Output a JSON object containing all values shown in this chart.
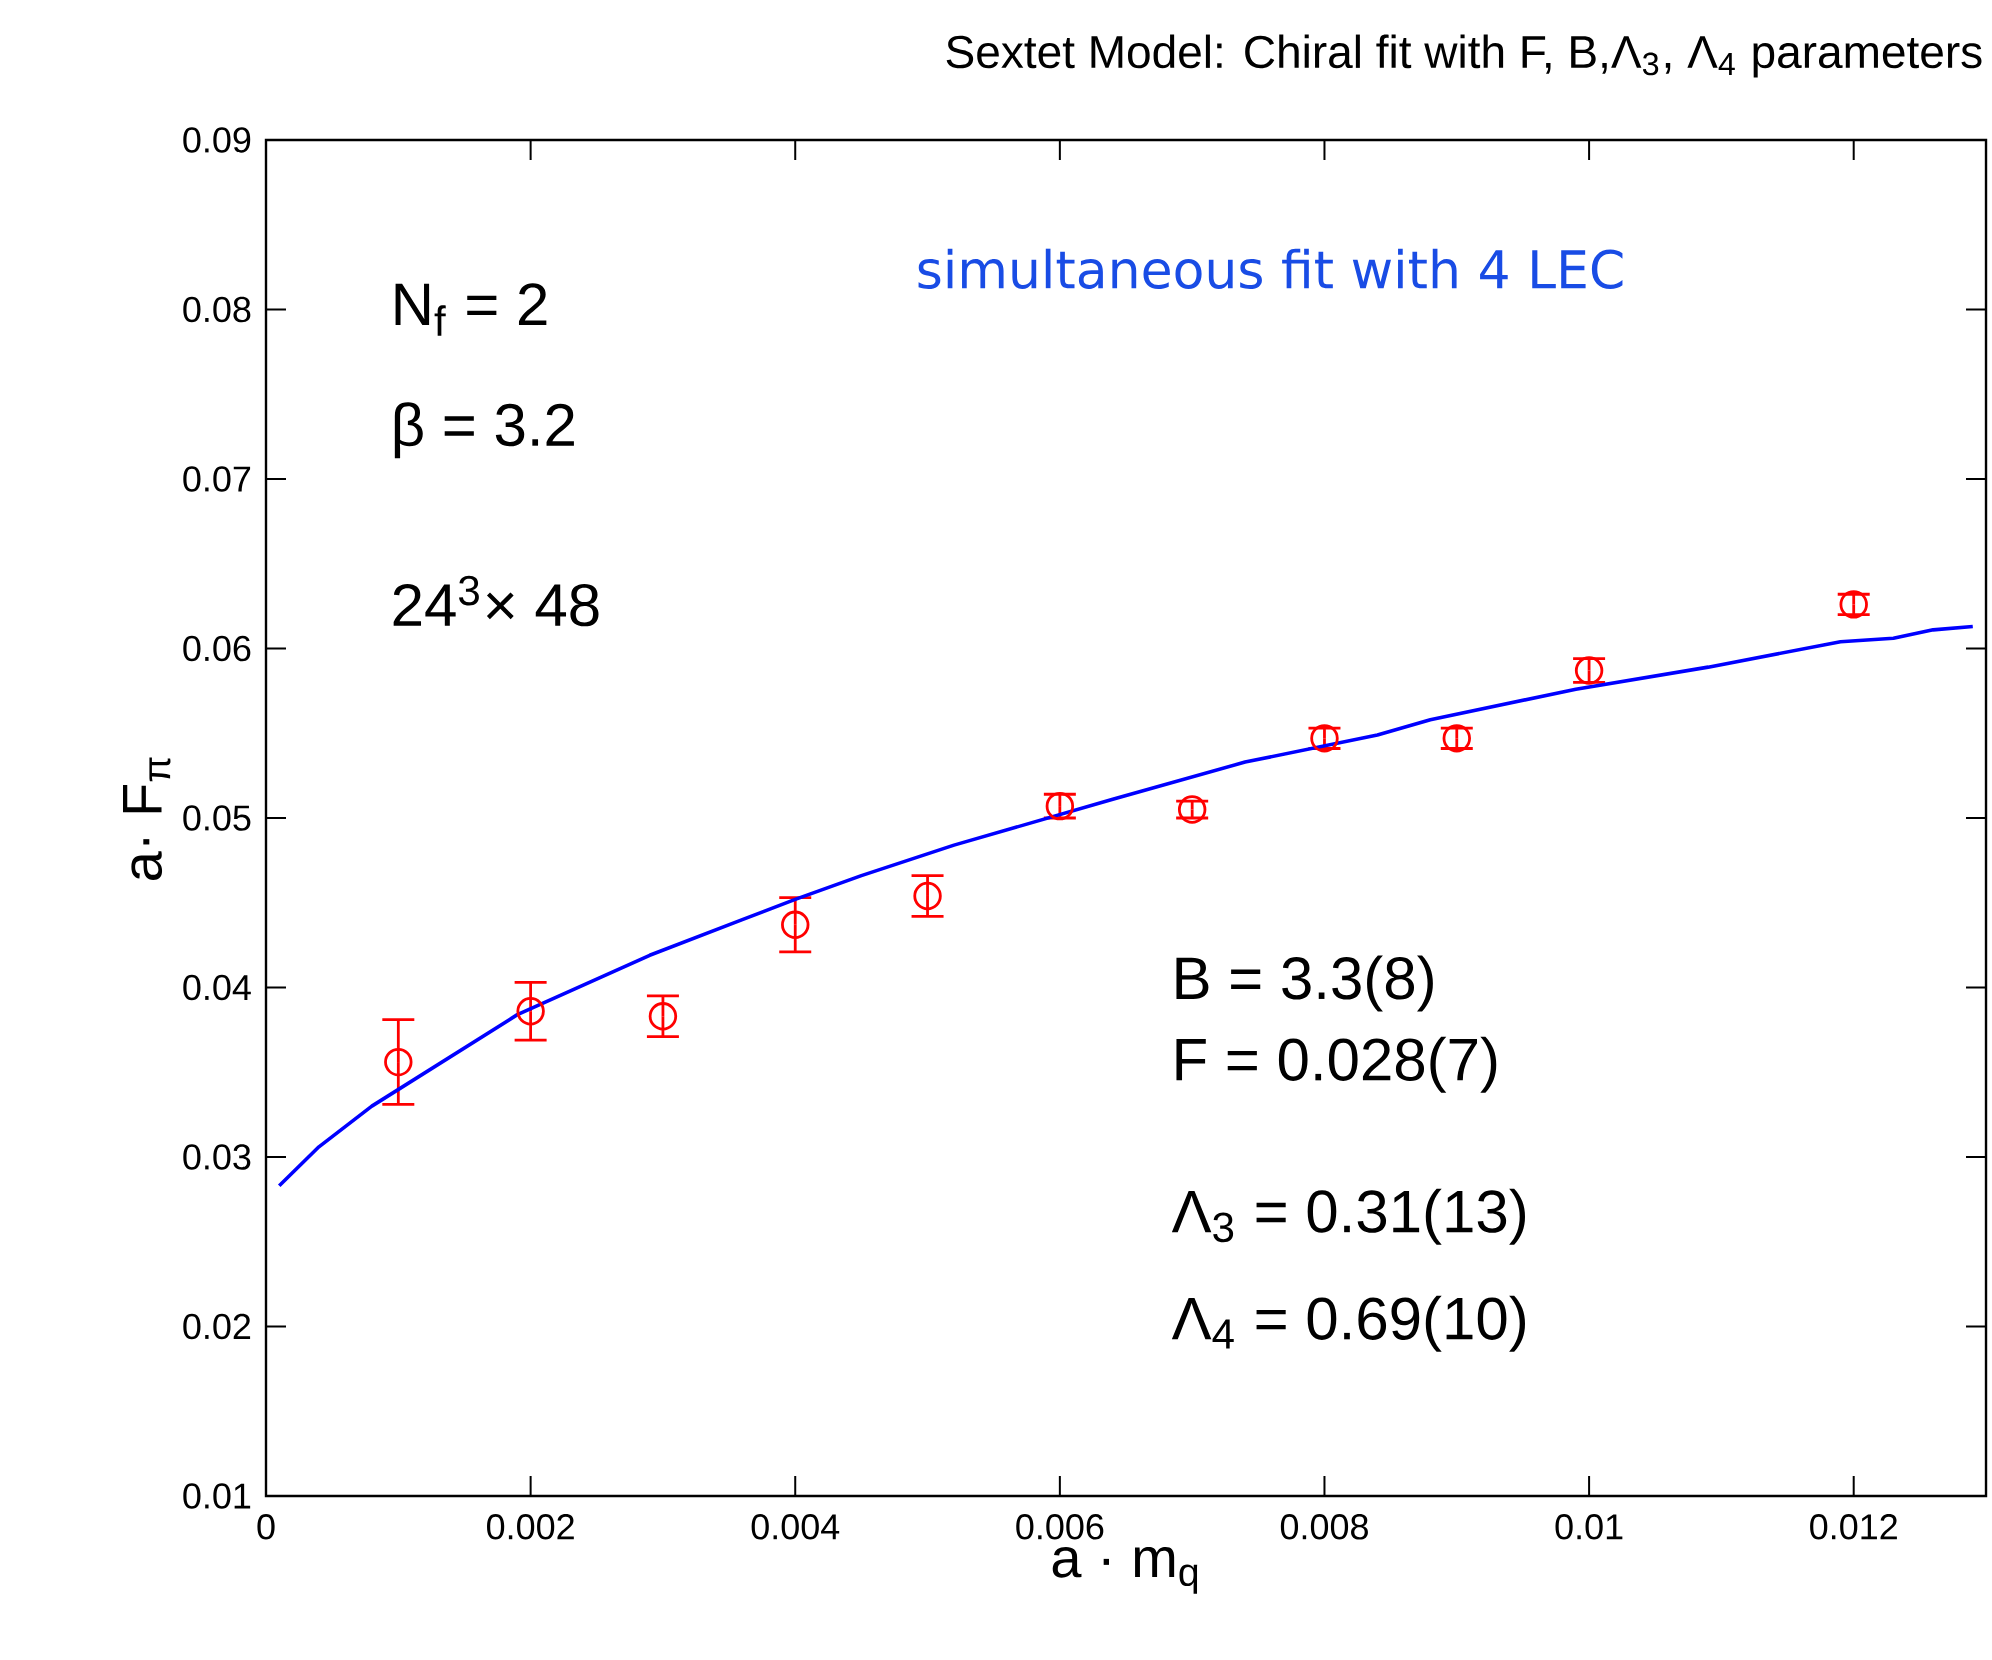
{
  "chart_data": {
    "type": "scatter",
    "title": "Sextet Model: Chiral fit with F, B,Λ$_{3}$, Λ$_{4}$  parameters",
    "xlabel": "a · m$_{q}$",
    "ylabel": "a· F$_{π}$",
    "xlim": [
      0,
      0.013
    ],
    "ylim": [
      0.01,
      0.09
    ],
    "xticks": [
      0,
      0.002,
      0.004,
      0.006,
      0.008,
      {
        "value": 0.01,
        "label": "0.01"
      },
      0.012
    ],
    "yticks": [
      0.01,
      0.02,
      0.03,
      0.04,
      0.05,
      0.06,
      0.07,
      0.08,
      0.09
    ],
    "annotations": [
      "simultaneous fit with 4 LEC",
      "N$_{f}$ = 2",
      "β = 3.2",
      "24$^{3}$× 48",
      "B = 3.3(8)",
      "F = 0.028(7)",
      "Λ$_{3}$ = 0.31(13)",
      "Λ$_{4}$ = 0.69(10)"
    ],
    "series": [
      {
        "color": "#ff0000",
        "marker": "circle",
        "x": [
          0.001,
          0.002,
          0.003,
          0.004,
          0.005,
          0.006,
          0.007,
          0.008,
          0.009,
          0.01,
          0.012
        ],
        "values": [
          0.0356,
          0.0386,
          0.0383,
          0.0437,
          0.0454,
          0.0507,
          0.0505,
          0.0547,
          0.0547,
          0.0587,
          0.0626
        ],
        "errors": [
          0.0025,
          0.0017,
          0.0012,
          0.0016,
          0.0012,
          0.0007,
          0.0005,
          0.0006,
          0.0006,
          0.0007,
          0.0006
        ]
      },
      {
        "type": "line",
        "color": "#0000ff",
        "x": [
          0.0001,
          0.0004,
          0.0008,
          0.0019,
          0.0029,
          0.0036,
          0.004,
          0.0045,
          0.0052,
          0.0064,
          0.0074,
          0.0084,
          0.0088,
          0.0099,
          0.0109,
          0.0119,
          0.0123,
          0.0126,
          0.0129
        ],
        "values": [
          0.0283,
          0.0306,
          0.033,
          0.0384,
          0.0419,
          0.044,
          0.0452,
          0.0466,
          0.0484,
          0.0511,
          0.0533,
          0.0549,
          0.0558,
          0.0576,
          0.0589,
          0.0604,
          0.0606,
          0.0611,
          0.0613
        ]
      }
    ]
  }
}
